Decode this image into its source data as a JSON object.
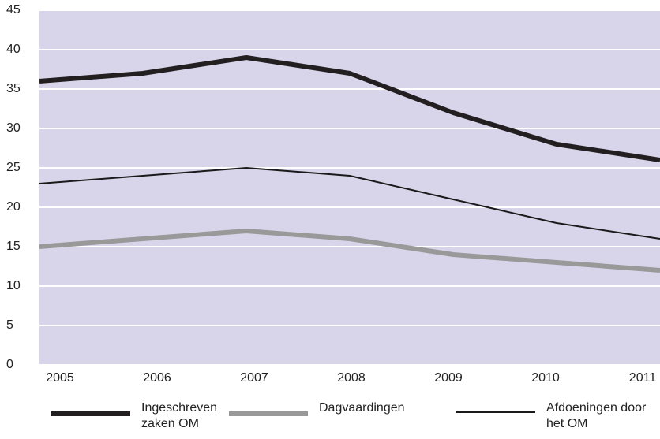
{
  "chart_data": {
    "type": "line",
    "categories": [
      "2005",
      "2006",
      "2007",
      "2008",
      "2009",
      "2010",
      "2011"
    ],
    "series": [
      {
        "name": "Ingeschreven zaken OM",
        "color": "#231f20",
        "width": 6,
        "values": [
          36,
          37,
          39,
          37,
          32,
          28,
          26
        ]
      },
      {
        "name": "Dagvaardingen",
        "color": "#999999",
        "width": 6,
        "values": [
          15,
          16,
          17,
          16,
          14,
          13,
          12
        ]
      },
      {
        "name": "Afdoeningen door het OM",
        "color": "#1a1a1a",
        "width": 2,
        "values": [
          23,
          24,
          25,
          24,
          21,
          18,
          16
        ]
      }
    ],
    "ylim": [
      0,
      45
    ],
    "yticks": [
      0,
      5,
      10,
      15,
      20,
      25,
      30,
      35,
      40,
      45
    ],
    "grid": true,
    "background": "#d8d4ea"
  }
}
